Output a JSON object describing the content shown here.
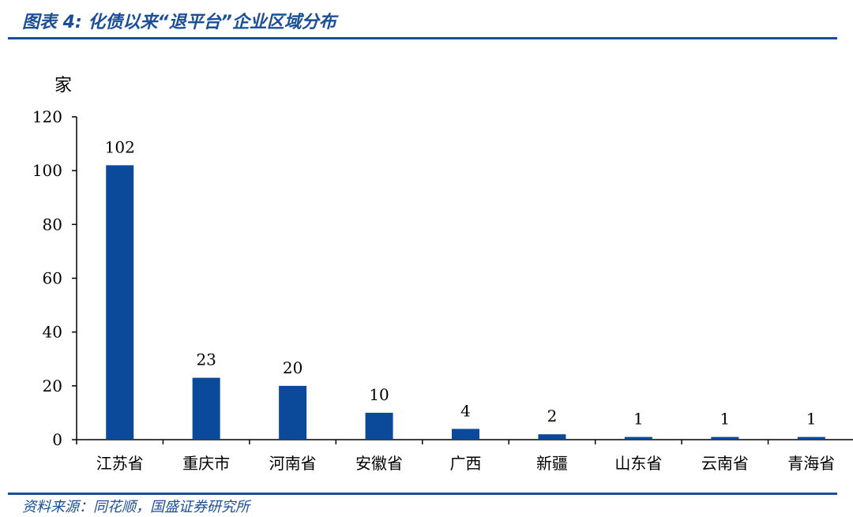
{
  "figure": {
    "title": "图表 4: 化债以来“退平台”企业区域分布",
    "source": "资料来源：同花顺，国盛证券研究所"
  },
  "chart_data": {
    "type": "bar",
    "categories": [
      "江苏省",
      "重庆市",
      "河南省",
      "安徽省",
      "广西",
      "新疆",
      "山东省",
      "云南省",
      "青海省"
    ],
    "values": [
      102,
      23,
      20,
      10,
      4,
      2,
      1,
      1,
      1
    ],
    "ylabel": "家",
    "ylim": [
      0,
      120
    ],
    "yticks": [
      0,
      20,
      40,
      60,
      80,
      100,
      120
    ],
    "bar_color": "#0b4a9a",
    "data_labels": true,
    "grid": false,
    "legend": "none"
  }
}
